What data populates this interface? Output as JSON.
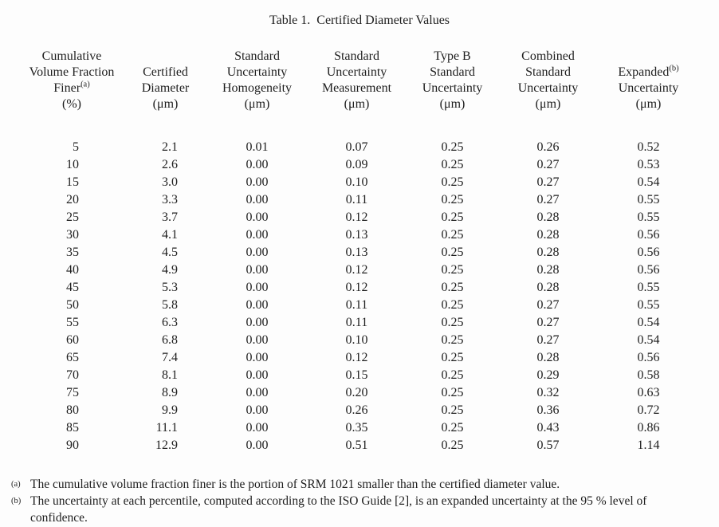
{
  "title": "Table 1.  Certified Diameter Values",
  "colors": {
    "text": "#1e1e1e",
    "background": "#fdfdfd"
  },
  "table": {
    "columns": [
      {
        "name": "cumulative-volume-fraction-finer",
        "lines": [
          "Cumulative",
          "Volume Fraction",
          "Finer^(a)",
          "(%)"
        ]
      },
      {
        "name": "certified-diameter",
        "lines": [
          "Certified",
          "Diameter",
          "(μm)"
        ]
      },
      {
        "name": "standard-uncertainty-homogeneity",
        "lines": [
          "Standard",
          "Uncertainty",
          "Homogeneity",
          "(μm)"
        ]
      },
      {
        "name": "standard-uncertainty-measurement",
        "lines": [
          "Standard",
          "Uncertainty",
          "Measurement",
          "(μm)"
        ]
      },
      {
        "name": "type-b-standard-uncertainty",
        "lines": [
          "Type B",
          "Standard",
          "Uncertainty",
          "(μm)"
        ]
      },
      {
        "name": "combined-standard-uncertainty",
        "lines": [
          "Combined",
          "Standard",
          "Uncertainty",
          "(μm)"
        ]
      },
      {
        "name": "expanded-uncertainty",
        "lines": [
          "Expanded^(b)",
          "Uncertainty",
          "(μm)"
        ]
      }
    ],
    "rows": [
      [
        "5",
        "2.1",
        "0.01",
        "0.07",
        "0.25",
        "0.26",
        "0.52"
      ],
      [
        "10",
        "2.6",
        "0.00",
        "0.09",
        "0.25",
        "0.27",
        "0.53"
      ],
      [
        "15",
        "3.0",
        "0.00",
        "0.10",
        "0.25",
        "0.27",
        "0.54"
      ],
      [
        "20",
        "3.3",
        "0.00",
        "0.11",
        "0.25",
        "0.27",
        "0.55"
      ],
      [
        "25",
        "3.7",
        "0.00",
        "0.12",
        "0.25",
        "0.28",
        "0.55"
      ],
      [
        "30",
        "4.1",
        "0.00",
        "0.13",
        "0.25",
        "0.28",
        "0.56"
      ],
      [
        "35",
        "4.5",
        "0.00",
        "0.13",
        "0.25",
        "0.28",
        "0.56"
      ],
      [
        "40",
        "4.9",
        "0.00",
        "0.12",
        "0.25",
        "0.28",
        "0.56"
      ],
      [
        "45",
        "5.3",
        "0.00",
        "0.12",
        "0.25",
        "0.28",
        "0.55"
      ],
      [
        "50",
        "5.8",
        "0.00",
        "0.11",
        "0.25",
        "0.27",
        "0.55"
      ],
      [
        "55",
        "6.3",
        "0.00",
        "0.11",
        "0.25",
        "0.27",
        "0.54"
      ],
      [
        "60",
        "6.8",
        "0.00",
        "0.10",
        "0.25",
        "0.27",
        "0.54"
      ],
      [
        "65",
        "7.4",
        "0.00",
        "0.12",
        "0.25",
        "0.28",
        "0.56"
      ],
      [
        "70",
        "8.1",
        "0.00",
        "0.15",
        "0.25",
        "0.29",
        "0.58"
      ],
      [
        "75",
        "8.9",
        "0.00",
        "0.20",
        "0.25",
        "0.32",
        "0.63"
      ],
      [
        "80",
        "9.9",
        "0.00",
        "0.26",
        "0.25",
        "0.36",
        "0.72"
      ],
      [
        "85",
        "11.1",
        "0.00",
        "0.35",
        "0.25",
        "0.43",
        "0.86"
      ],
      [
        "90",
        "12.9",
        "0.00",
        "0.51",
        "0.25",
        "0.57",
        "1.14"
      ]
    ]
  },
  "footnotes": [
    {
      "marker": "(a)",
      "text": "The cumulative volume fraction finer is the portion of SRM 1021 smaller than the certified diameter value."
    },
    {
      "marker": "(b)",
      "text": "The uncertainty at each percentile, computed according to the ISO Guide [2], is an expanded uncertainty at the 95 % level of confidence."
    }
  ]
}
